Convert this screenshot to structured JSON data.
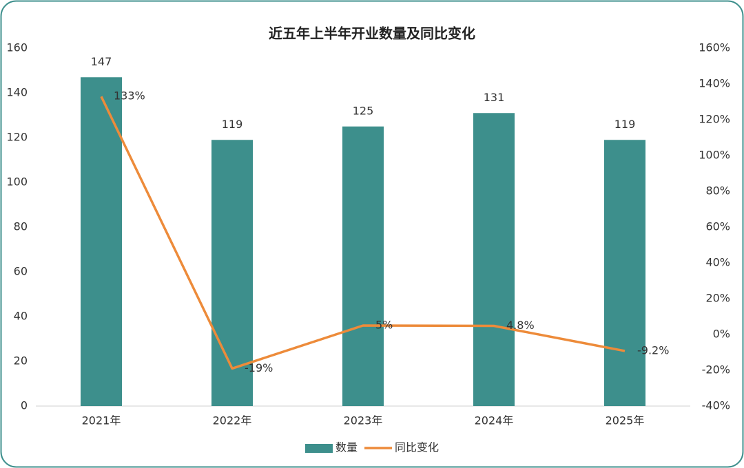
{
  "chart_data": {
    "type": "combo",
    "title": "近五年上半年开业数量及同比变化",
    "categories": [
      "2021年",
      "2022年",
      "2023年",
      "2024年",
      "2025年"
    ],
    "series": [
      {
        "name": "数量",
        "type": "bar",
        "color": "#3d8f8c",
        "values": [
          147,
          119,
          125,
          131,
          119
        ]
      },
      {
        "name": "同比变化",
        "type": "line",
        "axis": "y2",
        "color": "#ed8b3a",
        "values": [
          133,
          -19,
          5,
          4.8,
          -9.2
        ],
        "value_labels": [
          "133%",
          "-19%",
          "5%",
          "4.8%",
          "-9.2%"
        ]
      }
    ],
    "ylim": [
      0,
      160
    ],
    "yticks": [
      0,
      20,
      40,
      60,
      80,
      100,
      120,
      140,
      160
    ],
    "y2lim": [
      -40,
      160
    ],
    "y2ticks": [
      {
        "value": -40,
        "label": "-40%"
      },
      {
        "value": -20,
        "label": "-20%"
      },
      {
        "value": 0,
        "label": "0%"
      },
      {
        "value": 20,
        "label": "20%"
      },
      {
        "value": 40,
        "label": "40%"
      },
      {
        "value": 60,
        "label": "60%"
      },
      {
        "value": 80,
        "label": "80%"
      },
      {
        "value": 100,
        "label": "100%"
      },
      {
        "value": 120,
        "label": "120%"
      },
      {
        "value": 140,
        "label": "140%"
      },
      {
        "value": 160,
        "label": "160%"
      }
    ],
    "grid": false,
    "legend": "bottom"
  }
}
